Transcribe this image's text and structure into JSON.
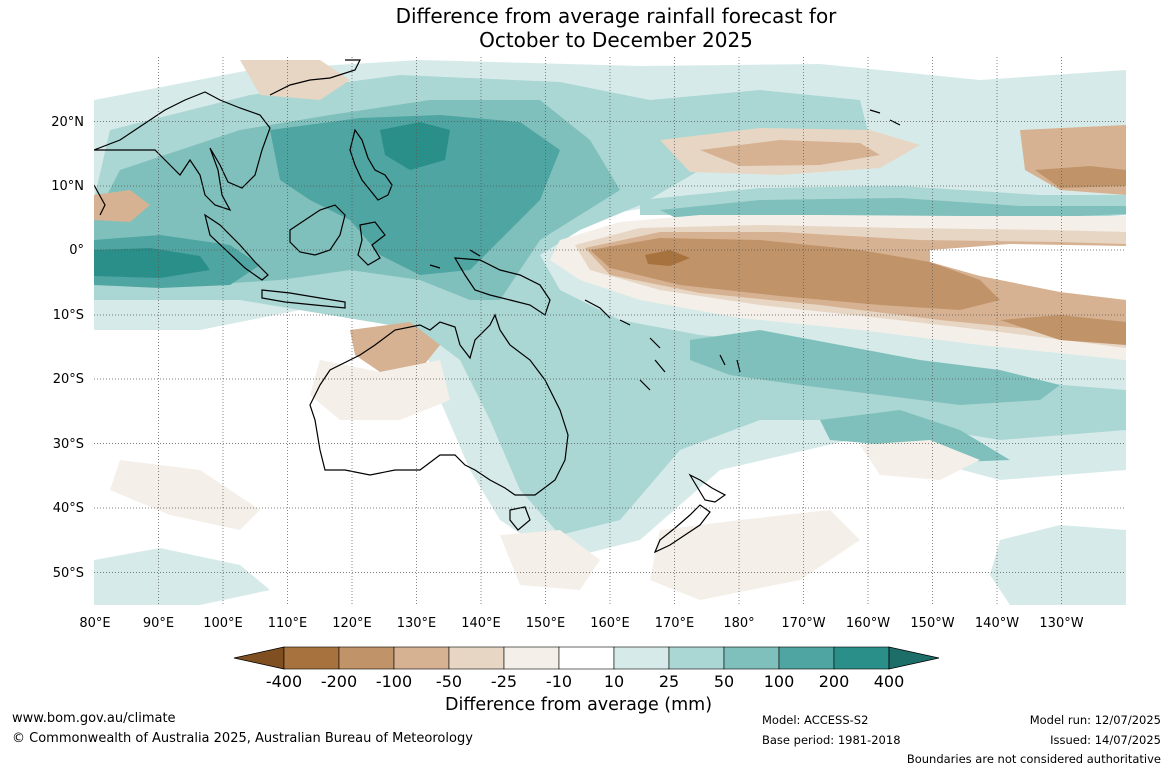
{
  "title": {
    "line1": "Difference from average rainfall forecast for",
    "line2": "October to December 2025"
  },
  "map": {
    "lon_labels": [
      "80°E",
      "90°E",
      "100°E",
      "110°E",
      "120°E",
      "130°E",
      "140°E",
      "150°E",
      "160°E",
      "170°E",
      "180°",
      "170°W",
      "160°W",
      "150°W",
      "140°W",
      "130°W"
    ],
    "lat_labels": [
      "20°N",
      "10°N",
      "0°",
      "10°S",
      "20°S",
      "30°S",
      "40°S",
      "50°S"
    ],
    "extent": {
      "lon_min": 80,
      "lon_max": 240,
      "lat_min": -55,
      "lat_max": 30
    },
    "gridlines": true
  },
  "colorbar": {
    "labels": [
      "-400",
      "-200",
      "-100",
      "-50",
      "-25",
      "-10",
      "10",
      "25",
      "50",
      "100",
      "200",
      "400"
    ],
    "colors": [
      "#7f4f22",
      "#a8723e",
      "#c19368",
      "#d6b292",
      "#e8d6c4",
      "#f4efe8",
      "#ffffff",
      "#d6ebe9",
      "#aad6d3",
      "#7fc0bc",
      "#4fa5a1",
      "#2b8f89",
      "#1d6e68"
    ],
    "label": "Difference from average (mm)"
  },
  "footer": {
    "website": "www.bom.gov.au/climate",
    "copyright": "© Commonwealth of Australia 2025, Australian Bureau of Meteorology",
    "model": "Model: ACCESS-S2",
    "base_period": "Base period: 1981-2018",
    "model_run": "Model run: 12/07/2025",
    "issued": "Issued: 14/07/2025",
    "disclaimer": "Boundaries are not considered authoritative"
  }
}
